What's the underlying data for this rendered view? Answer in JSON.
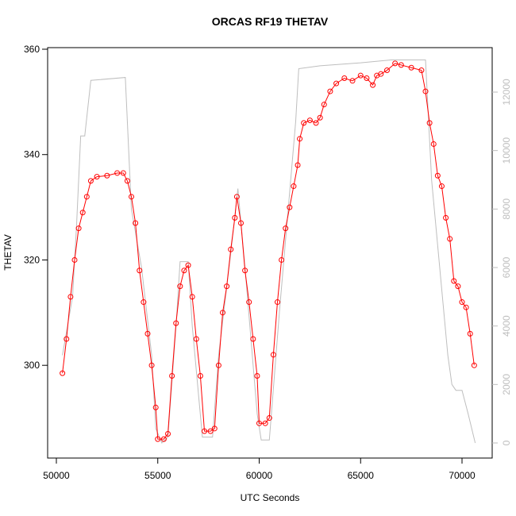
{
  "chart_data": {
    "type": "line",
    "title": "ORCAS RF19 THETAV",
    "x_label": "UTC Seconds",
    "y_label": "THETAV",
    "xlim": [
      49570,
      71487
    ],
    "ylim": [
      282.4,
      360.3
    ],
    "y2lim": [
      -516,
      13520
    ],
    "xticks": [
      50000,
      55000,
      60000,
      65000,
      70000
    ],
    "yticks": [
      300,
      320,
      340,
      360
    ],
    "y2ticks": [
      0,
      2000,
      4000,
      6000,
      8000,
      10000,
      12000
    ],
    "series": [
      {
        "color": "#bebebe",
        "axis": "y2",
        "x": [
          50300,
          50800,
          51000,
          51200,
          51400,
          51700,
          53400,
          53700,
          54200,
          54700,
          54900,
          55200,
          55500,
          55900,
          56100,
          56500,
          56700,
          57200,
          57700,
          58000,
          58600,
          58950,
          59300,
          59900,
          60100,
          60500,
          61000,
          61800,
          61950,
          63000,
          65000,
          66500,
          68200,
          68500,
          68900,
          69300,
          69500,
          69700,
          70000,
          70300,
          70650
        ],
        "values": [
          3000,
          5000,
          7500,
          10500,
          10500,
          12400,
          12500,
          8000,
          6000,
          3000,
          500,
          0,
          200,
          4000,
          6200,
          6200,
          4000,
          200,
          200,
          3000,
          6500,
          8700,
          6000,
          1000,
          100,
          100,
          4500,
          11000,
          12800,
          12900,
          13000,
          13100,
          13100,
          9000,
          6000,
          3000,
          2000,
          1800,
          1800,
          1000,
          0
        ]
      },
      {
        "color": "#ff0000",
        "x": [
          50300,
          50500,
          50700,
          50900,
          51100,
          51300,
          51500,
          51700,
          52000,
          52500,
          53000,
          53300,
          53500,
          53700,
          53900,
          54100,
          54300,
          54500,
          54700,
          54900,
          55000,
          55300,
          55500,
          55700,
          55900,
          56100,
          56300,
          56500,
          56700,
          56900,
          57100,
          57300,
          57600,
          57800,
          58000,
          58200,
          58400,
          58600,
          58800,
          58900,
          59100,
          59300,
          59500,
          59700,
          59900,
          60000,
          60300,
          60500,
          60700,
          60900,
          61100,
          61300,
          61500,
          61700,
          61900,
          62000,
          62200,
          62500,
          62800,
          63000,
          63200,
          63500,
          63800,
          64200,
          64600,
          65000,
          65300,
          65600,
          65800,
          66000,
          66300,
          66700,
          67000,
          67500,
          68000,
          68200,
          68400,
          68600,
          68800,
          69000,
          69200,
          69400,
          69600,
          69800,
          70000,
          70200,
          70400,
          70600
        ],
        "values": [
          298.5,
          305,
          313,
          320,
          326,
          329,
          332,
          335,
          335.8,
          336,
          336.5,
          336.5,
          335,
          332,
          327,
          318,
          312,
          306,
          300,
          292,
          286,
          286,
          287,
          298,
          308,
          315,
          318,
          319,
          313,
          305,
          298,
          287.5,
          287.5,
          288,
          300,
          310,
          315,
          322,
          328,
          332,
          327,
          318,
          312,
          305,
          298,
          289,
          289,
          290,
          302,
          312,
          320,
          326,
          330,
          334,
          338,
          343,
          346,
          346.5,
          346,
          347,
          349.5,
          352,
          353.5,
          354.5,
          354,
          355,
          354.5,
          353.2,
          355,
          355.3,
          356,
          357.3,
          357,
          356.5,
          356,
          352,
          346,
          342,
          336,
          334,
          328,
          324,
          316,
          315,
          312,
          311,
          306,
          300
        ]
      }
    ]
  }
}
